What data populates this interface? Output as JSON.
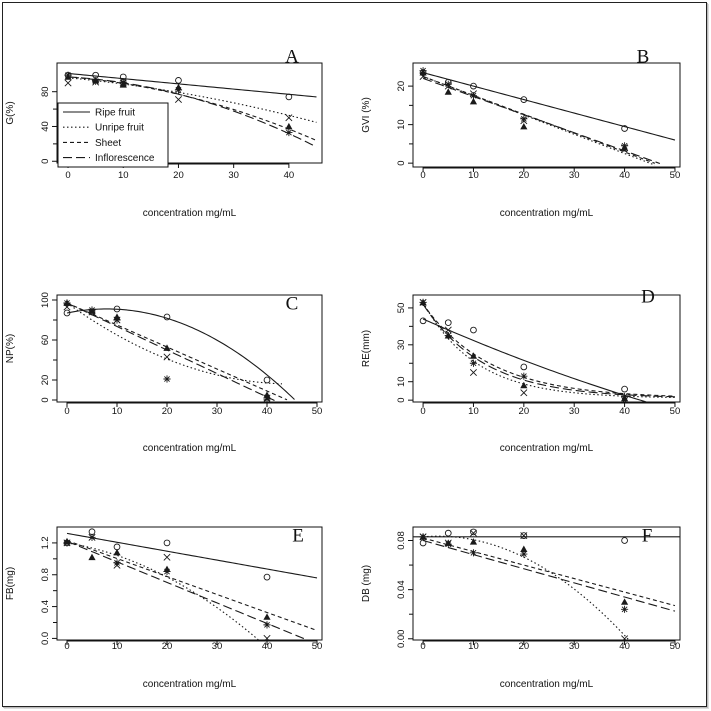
{
  "figure": {
    "line_styles": {
      "ripe": {
        "dash": "",
        "width": 1.1
      },
      "unripe": {
        "dash": "1.5,2.5",
        "width": 1.1
      },
      "sheet": {
        "dash": "4,3",
        "width": 1.1
      },
      "inflorescence": {
        "dash": "9,4",
        "width": 1.1
      }
    },
    "colors": {
      "line": "#1a1a1a",
      "frame": "#111111",
      "page": "#ffffff"
    },
    "marker_icons": {
      "ripe": "open-circle",
      "unripe": "x-cross",
      "sheet": "filled-triangle",
      "inflorescence": "asterisk"
    }
  },
  "chart_data": [
    {
      "type": "line",
      "panel": "A",
      "xlabel": "concentration mg/mL",
      "ylabel": "G(%)",
      "xlim": [
        -2,
        46
      ],
      "ylim": [
        -2,
        113
      ],
      "xticks": [
        0,
        10,
        20,
        30,
        40
      ],
      "yticks": [
        0,
        40,
        80
      ],
      "yticks_minor": [
        20,
        60
      ],
      "legend": {
        "position": "center-left",
        "entries": [
          {
            "label": "Ripe fruit",
            "key": "ripe"
          },
          {
            "label": "Unripe fruit",
            "key": "unripe"
          },
          {
            "label": "Sheet",
            "key": "sheet"
          },
          {
            "label": "Inflorescence",
            "key": "inflorescence"
          }
        ]
      },
      "series": [
        {
          "key": "ripe",
          "name": "Ripe fruit",
          "marker": "circle",
          "x": [
            0,
            5,
            10,
            20,
            40
          ],
          "y": [
            99,
            99,
            97,
            93,
            74
          ],
          "fit": {
            "form": "poly",
            "coef": [
              101,
              -0.6
            ],
            "range": [
              0,
              45
            ]
          }
        },
        {
          "key": "unripe",
          "name": "Unripe fruit",
          "marker": "x",
          "x": [
            0,
            5,
            10,
            20,
            40
          ],
          "y": [
            90,
            91,
            90,
            71,
            50
          ],
          "fit": {
            "form": "poly",
            "coef": [
              96,
              -0.6,
              -0.012
            ],
            "range": [
              0,
              45
            ]
          }
        },
        {
          "key": "sheet",
          "name": "Sheet",
          "marker": "triangle",
          "x": [
            0,
            5,
            10,
            20,
            40
          ],
          "y": [
            97,
            93,
            88,
            85,
            40
          ],
          "fit": {
            "form": "poly",
            "coef": [
              97,
              -0.5,
              -0.025
            ],
            "range": [
              0,
              45
            ]
          }
        },
        {
          "key": "inflorescence",
          "name": "Inflorescence",
          "marker": "asterisk",
          "x": [
            0,
            5,
            10,
            20,
            40
          ],
          "y": [
            99,
            92,
            91,
            82,
            33
          ],
          "fit": {
            "form": "poly",
            "coef": [
              97,
              -0.35,
              -0.032
            ],
            "range": [
              0,
              45
            ]
          }
        }
      ]
    },
    {
      "type": "line",
      "panel": "B",
      "xlabel": "concentration mg/mL",
      "ylabel": "GVI (%)",
      "xlim": [
        -2,
        51
      ],
      "ylim": [
        -1,
        26
      ],
      "xticks": [
        0,
        10,
        20,
        30,
        40,
        50
      ],
      "yticks": [
        0,
        10,
        20
      ],
      "yticks_minor": [
        5,
        15
      ],
      "series": [
        {
          "key": "ripe",
          "name": "Ripe fruit",
          "marker": "circle",
          "x": [
            0,
            5,
            10,
            20,
            40
          ],
          "y": [
            23.5,
            21,
            20,
            16.5,
            9
          ],
          "fit": {
            "form": "poly",
            "coef": [
              23.5,
              -0.35
            ],
            "range": [
              0,
              50
            ]
          }
        },
        {
          "key": "unripe",
          "name": "Unripe fruit",
          "marker": "x",
          "x": [
            0,
            5,
            10,
            20,
            40
          ],
          "y": [
            22.5,
            20,
            18,
            11,
            4
          ],
          "fit": {
            "form": "poly",
            "coef": [
              22.5,
              -0.5
            ],
            "range": [
              0,
              46
            ]
          }
        },
        {
          "key": "sheet",
          "name": "Sheet",
          "marker": "triangle",
          "x": [
            0,
            5,
            10,
            20,
            40
          ],
          "y": [
            23.5,
            18.5,
            16,
            9.5,
            4
          ],
          "fit": {
            "form": "poly",
            "coef": [
              22.5,
              -0.49
            ],
            "range": [
              0,
              46
            ]
          }
        },
        {
          "key": "inflorescence",
          "name": "Inflorescence",
          "marker": "asterisk",
          "x": [
            0,
            5,
            10,
            20,
            40
          ],
          "y": [
            24,
            20.5,
            17.5,
            11.5,
            4.5
          ],
          "fit": {
            "form": "poly",
            "coef": [
              22,
              -0.47
            ],
            "range": [
              0,
              47
            ]
          }
        }
      ]
    },
    {
      "type": "line",
      "panel": "C",
      "xlabel": "concentration mg/mL",
      "ylabel": "NP(%)",
      "xlim": [
        -2,
        51
      ],
      "ylim": [
        -2,
        105
      ],
      "xticks": [
        0,
        10,
        20,
        30,
        40,
        50
      ],
      "yticks": [
        0,
        20,
        60,
        100
      ],
      "yticks_minor": [
        40,
        80
      ],
      "series": [
        {
          "key": "ripe",
          "name": "Ripe fruit",
          "marker": "circle",
          "x": [
            0,
            5,
            10,
            20,
            40
          ],
          "y": [
            87,
            88,
            91,
            83,
            20
          ],
          "fit": {
            "form": "poly",
            "coef": [
              87,
              1.02,
              -0.0642
            ],
            "range": [
              0,
              45.5
            ]
          }
        },
        {
          "key": "unripe",
          "name": "Unripe fruit",
          "marker": "x",
          "x": [
            0,
            5,
            10,
            20,
            40
          ],
          "y": [
            93,
            88,
            80,
            43,
            2
          ],
          "fit": {
            "form": "poly",
            "coef": [
              97,
              -3.6,
              0.04
            ],
            "range": [
              0,
              43
            ]
          }
        },
        {
          "key": "sheet",
          "name": "Sheet",
          "marker": "triangle",
          "x": [
            0,
            5,
            10,
            20,
            40
          ],
          "y": [
            97,
            89,
            83,
            52,
            5
          ],
          "fit": {
            "form": "poly",
            "coef": [
              97,
              -2.2
            ],
            "range": [
              0,
              44
            ]
          }
        },
        {
          "key": "inflorescence",
          "name": "Inflorescence",
          "marker": "asterisk",
          "x": [
            0,
            5,
            10,
            20,
            40
          ],
          "y": [
            97,
            90,
            80,
            21,
            1
          ],
          "fit": {
            "form": "poly",
            "coef": [
              97,
              -2.35
            ],
            "range": [
              0,
              41.5
            ]
          }
        }
      ]
    },
    {
      "type": "line",
      "panel": "D",
      "xlabel": "concentration mg/mL",
      "ylabel": "RE(mm)",
      "xlim": [
        -2,
        51
      ],
      "ylim": [
        -1,
        57
      ],
      "xticks": [
        0,
        10,
        20,
        30,
        40,
        50
      ],
      "yticks": [
        0,
        10,
        30,
        50
      ],
      "yticks_minor": [
        20,
        40
      ],
      "series": [
        {
          "key": "ripe",
          "name": "Ripe fruit",
          "marker": "circle",
          "x": [
            0,
            5,
            10,
            20,
            40
          ],
          "y": [
            43,
            42,
            38,
            18,
            6
          ],
          "fit": {
            "form": "poly",
            "coef": [
              44,
              -1.21,
              0.0044
            ],
            "range": [
              0,
              48
            ]
          }
        },
        {
          "key": "unripe",
          "name": "Unripe fruit",
          "marker": "x",
          "x": [
            0,
            5,
            10,
            20,
            40
          ],
          "y": [
            53,
            38,
            15,
            4,
            0
          ],
          "fit": {
            "form": "exp",
            "coef": [
              52,
              0.095,
              1
            ],
            "range": [
              0,
              50
            ]
          }
        },
        {
          "key": "sheet",
          "name": "Sheet",
          "marker": "triangle",
          "x": [
            0,
            5,
            10,
            20,
            40
          ],
          "y": [
            53,
            35,
            24,
            8,
            1
          ],
          "fit": {
            "form": "exp",
            "coef": [
              51,
              0.075,
              1
            ],
            "range": [
              0,
              50
            ]
          }
        },
        {
          "key": "inflorescence",
          "name": "Inflorescence",
          "marker": "asterisk",
          "x": [
            0,
            5,
            10,
            20,
            40
          ],
          "y": [
            53,
            35,
            20,
            13,
            2
          ],
          "fit": {
            "form": "exp",
            "coef": [
              51,
              0.082,
              1
            ],
            "range": [
              0,
              50
            ]
          }
        }
      ]
    },
    {
      "type": "line",
      "panel": "E",
      "xlabel": "concentration mg/mL",
      "ylabel": "FB(mg)",
      "xlim": [
        -2,
        51
      ],
      "ylim": [
        -0.02,
        1.4
      ],
      "xticks": [
        0,
        10,
        20,
        30,
        40,
        50
      ],
      "yticks": [
        0.0,
        0.4,
        0.8,
        1.2
      ],
      "ytick_labels": [
        "0.0",
        "0.4",
        "0.8",
        "1.2"
      ],
      "yticks_minor": [
        0.2,
        0.6,
        1.0
      ],
      "series": [
        {
          "key": "ripe",
          "name": "Ripe fruit",
          "marker": "circle",
          "x": [
            0,
            5,
            10,
            20,
            40
          ],
          "y": [
            1.2,
            1.34,
            1.15,
            1.2,
            0.77
          ],
          "fit": {
            "form": "poly",
            "coef": [
              1.32,
              -0.0112
            ],
            "range": [
              0,
              50
            ]
          }
        },
        {
          "key": "unripe",
          "name": "Unripe fruit",
          "marker": "x",
          "x": [
            0,
            5,
            10,
            20,
            40
          ],
          "y": [
            1.2,
            1.27,
            0.92,
            1.02,
            0.0
          ],
          "fit": {
            "form": "poly",
            "coef": [
              1.2,
              -0.01,
              -0.00057
            ],
            "range": [
              0,
              40
            ]
          }
        },
        {
          "key": "sheet",
          "name": "Sheet",
          "marker": "triangle",
          "x": [
            0,
            5,
            10,
            20,
            40
          ],
          "y": [
            1.22,
            1.02,
            1.08,
            0.87,
            0.27
          ],
          "fit": {
            "form": "poly",
            "coef": [
              1.23,
              -0.0226
            ],
            "range": [
              0,
              50
            ]
          }
        },
        {
          "key": "inflorescence",
          "name": "Inflorescence",
          "marker": "asterisk",
          "x": [
            0,
            5,
            10,
            20,
            40
          ],
          "y": [
            1.2,
            1.27,
            0.95,
            0.84,
            0.17
          ],
          "fit": {
            "form": "poly",
            "coef": [
              1.22,
              -0.0258
            ],
            "range": [
              0,
              48
            ]
          }
        }
      ]
    },
    {
      "type": "line",
      "panel": "F",
      "xlabel": "concentration mg/mL",
      "ylabel": "DB (mg)",
      "xlim": [
        -2,
        51
      ],
      "ylim": [
        -0.001,
        0.091
      ],
      "xticks": [
        0,
        10,
        20,
        30,
        40,
        50
      ],
      "yticks": [
        0.0,
        0.04,
        0.08
      ],
      "ytick_labels": [
        "0.00",
        "0.04",
        "0.08"
      ],
      "yticks_minor": [
        0.02,
        0.06
      ],
      "series": [
        {
          "key": "ripe",
          "name": "Ripe fruit",
          "marker": "circle",
          "x": [
            0,
            5,
            10,
            20,
            40
          ],
          "y": [
            0.078,
            0.086,
            0.087,
            0.084,
            0.08
          ],
          "fit": {
            "form": "poly",
            "coef": [
              0.083,
              0
            ],
            "range": [
              -2,
              51
            ]
          }
        },
        {
          "key": "unripe",
          "name": "Unripe fruit",
          "marker": "x",
          "x": [
            0,
            5,
            10,
            20,
            40
          ],
          "y": [
            0.083,
            0.078,
            0.086,
            0.084,
            0.0
          ],
          "fit": {
            "form": "poly",
            "coef": [
              0.083,
              0.00035,
              -5.89e-05
            ],
            "range": [
              0,
              41
            ]
          }
        },
        {
          "key": "sheet",
          "name": "Sheet",
          "marker": "triangle",
          "x": [
            0,
            5,
            10,
            20,
            40
          ],
          "y": [
            0.083,
            0.078,
            0.079,
            0.073,
            0.03
          ],
          "fit": {
            "form": "poly",
            "coef": [
              0.082,
              -0.0011
            ],
            "range": [
              0,
              50
            ]
          }
        },
        {
          "key": "inflorescence",
          "name": "Inflorescence",
          "marker": "asterisk",
          "x": [
            0,
            5,
            10,
            20,
            40
          ],
          "y": [
            0.083,
            0.077,
            0.07,
            0.069,
            0.024
          ],
          "fit": {
            "form": "poly",
            "coef": [
              0.08,
              -0.00115
            ],
            "range": [
              0,
              50
            ]
          }
        }
      ]
    }
  ]
}
